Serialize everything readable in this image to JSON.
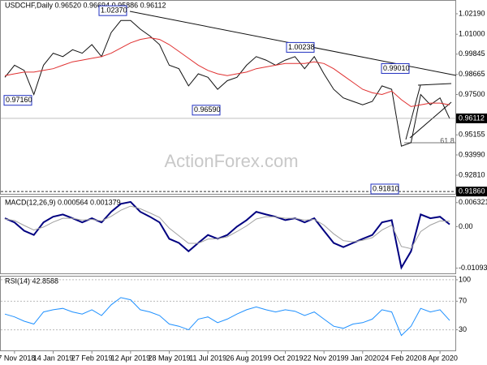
{
  "chart_data": [
    {
      "type": "line",
      "title": "USDCHF,Daily  0.96520 0.96694 0.95886 0.96112",
      "categories": [
        null,
        "27 Nov 2018",
        null,
        null,
        null,
        "14 Jan 2019",
        null,
        null,
        null,
        "27 Feb 2019",
        null,
        null,
        null,
        "12 Apr 2019",
        null,
        null,
        null,
        "28 May 2019",
        null,
        null,
        null,
        "11 Jul 2019",
        null,
        null,
        null,
        "26 Aug 2019",
        null,
        null,
        null,
        "9 Oct 2019",
        null,
        null,
        null,
        "22 Nov 2019",
        null,
        null,
        null,
        "9 Jan 2020",
        null,
        null,
        null,
        "24 Feb 2020",
        null,
        null,
        null,
        "8 Apr 2020",
        null
      ],
      "series": [
        {
          "color": "#111111",
          "values": [
            0.985,
            0.992,
            0.989,
            0.975,
            0.992,
            0.999,
            0.997,
            1.001,
            0.999,
            1.004,
            0.997,
            1.011,
            1.018,
            1.018,
            1.013,
            1.009,
            1.004,
            0.992,
            0.99,
            0.98,
            0.987,
            0.985,
            0.978,
            0.983,
            0.985,
            0.992,
            0.997,
            0.995,
            0.992,
            0.995,
            0.997,
            0.99,
            0.997,
            0.987,
            0.978,
            0.973,
            0.971,
            0.969,
            0.971,
            0.98,
            0.978,
            0.945,
            0.947,
            0.975,
            0.969,
            0.973,
            0.961
          ]
        },
        {
          "color": "#e03030",
          "values": [
            0.986,
            0.987,
            0.988,
            0.988,
            0.989,
            0.99,
            0.992,
            0.994,
            0.995,
            0.996,
            0.997,
            0.999,
            1.002,
            1.005,
            1.007,
            1.008,
            1.007,
            1.004,
            1.0,
            0.996,
            0.992,
            0.989,
            0.987,
            0.986,
            0.987,
            0.988,
            0.99,
            0.991,
            0.992,
            0.993,
            0.993,
            0.993,
            0.994,
            0.993,
            0.99,
            0.986,
            0.982,
            0.978,
            0.976,
            0.975,
            0.977,
            0.972,
            0.968,
            0.969,
            0.97,
            0.97,
            0.969
          ]
        }
      ],
      "ylim": [
        0.9168,
        1.0299
      ],
      "yticks": [
        {
          "value": 1.0219,
          "label": "1.02190"
        },
        {
          "value": 1.01,
          "label": "1.01000"
        },
        {
          "value": 0.99845,
          "label": "0.99845"
        },
        {
          "value": 0.98665,
          "label": "0.98665"
        },
        {
          "value": 0.975,
          "label": "0.97500"
        },
        {
          "value": 0.95155,
          "label": "0.95155"
        },
        {
          "value": 0.9399,
          "label": "0.93990"
        },
        {
          "value": 0.9281,
          "label": "0.92810"
        }
      ],
      "annotations": [
        {
          "value": 1.0237,
          "label": "1.02370"
        },
        {
          "value": 1.00238,
          "label": "1.00238"
        },
        {
          "value": 0.9901,
          "label": "0.99010"
        },
        {
          "value": 0.9716,
          "label": "0.97160"
        },
        {
          "value": 0.9659,
          "label": "0.96590"
        },
        {
          "value": 0.9181,
          "label": "0.91810"
        }
      ],
      "last_price": {
        "value": 0.96112,
        "label": "0.96112"
      },
      "support": {
        "value": 0.9186,
        "label": "0.91860"
      },
      "fib_level": 61.8,
      "watermark": "ActionForex.com"
    },
    {
      "type": "line",
      "title": "MACD(12,26,9) 0.000564 0.001379",
      "series": [
        {
          "color": "#000080",
          "values": [
            0.0022,
            0.0011,
            -0.0011,
            -0.0022,
            0.0011,
            0.0026,
            0.0032,
            0.0022,
            0.0011,
            0.0022,
            0.0011,
            0.0039,
            0.006,
            0.0065,
            0.0039,
            0.0026,
            0.0011,
            -0.0032,
            -0.0043,
            -0.0065,
            -0.0043,
            -0.0022,
            -0.0032,
            -0.0022,
            0,
            0.0017,
            0.0039,
            0.0032,
            0.0026,
            0.0017,
            0.0022,
            0.0011,
            0.0022,
            -0.0011,
            -0.0043,
            -0.0054,
            -0.0043,
            -0.0032,
            -0.0022,
            0.0011,
            0.0017,
            -0.0108,
            -0.0065,
            0.0032,
            0.0022,
            0.0026,
            0.0006
          ]
        },
        {
          "color": "#a0a0a0",
          "values": [
            0.002,
            0.0016,
            0.0003,
            -0.0009,
            -0.0001,
            0.0012,
            0.0022,
            0.0022,
            0.0017,
            0.0019,
            0.0015,
            0.0027,
            0.0043,
            0.0054,
            0.0047,
            0.0036,
            0.0024,
            -0.0004,
            -0.0024,
            -0.0044,
            -0.0044,
            -0.0033,
            -0.0032,
            -0.0027,
            -0.0013,
            0.0002,
            0.002,
            0.0026,
            0.0026,
            0.0022,
            0.0022,
            0.0017,
            0.0019,
            0.0004,
            -0.0019,
            -0.0037,
            -0.004,
            -0.0036,
            -0.0029,
            -0.0009,
            0.0004,
            -0.0052,
            -0.0058,
            -0.0013,
            0.0004,
            0.0015,
            0.0014
          ]
        }
      ],
      "ylim": [
        -0.01251,
        0.00798
      ],
      "yticks": [
        0.006321,
        {
          "value": 0,
          "label": "0.00"
        },
        -0.010939
      ]
    },
    {
      "type": "line",
      "title": "RSI(14) 42.8588",
      "series": [
        {
          "color": "#1e90ff",
          "values": [
            52,
            48,
            42,
            38,
            55,
            58,
            60,
            55,
            52,
            58,
            50,
            65,
            75,
            72,
            58,
            55,
            50,
            38,
            35,
            30,
            45,
            48,
            40,
            45,
            52,
            58,
            62,
            58,
            55,
            58,
            56,
            50,
            55,
            45,
            35,
            32,
            38,
            40,
            45,
            58,
            55,
            22,
            35,
            60,
            55,
            58,
            43
          ]
        }
      ],
      "ylim": [
        0,
        105.6
      ],
      "yticks": [
        100,
        70,
        30
      ],
      "grid": true
    }
  ]
}
